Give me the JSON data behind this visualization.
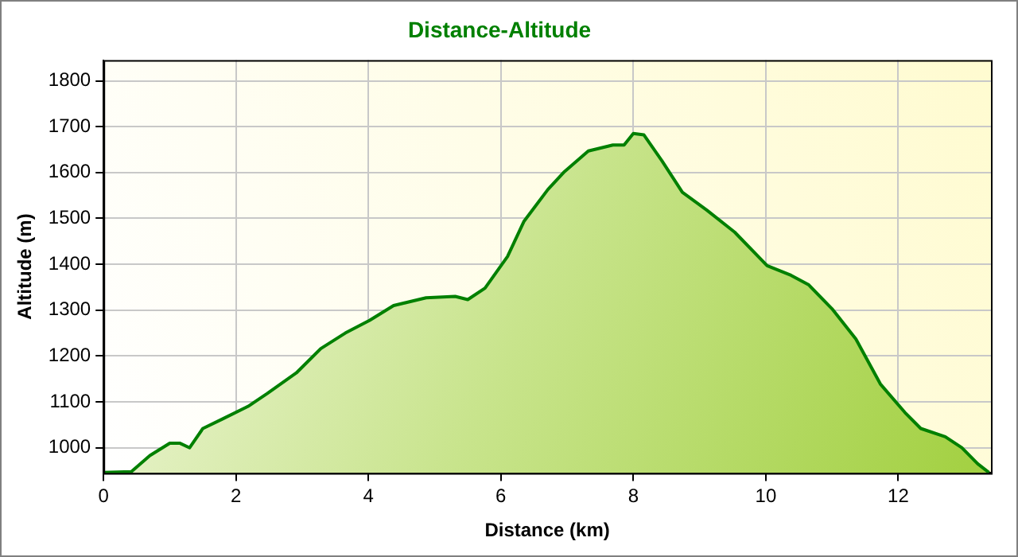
{
  "chart_data": {
    "type": "area",
    "title": "Distance-Altitude",
    "xlabel": "Distance (km)",
    "ylabel": "Altitude (m)",
    "x": [
      0,
      0.42,
      0.7,
      1.0,
      1.15,
      1.3,
      1.5,
      1.8,
      2.18,
      2.47,
      2.91,
      3.28,
      3.65,
      4.02,
      4.38,
      4.87,
      5.31,
      5.5,
      5.76,
      6.1,
      6.35,
      6.71,
      6.96,
      7.32,
      7.69,
      7.86,
      8.0,
      8.16,
      8.43,
      8.74,
      9.11,
      9.53,
      10.02,
      10.38,
      10.65,
      11.0,
      11.36,
      11.73,
      12.1,
      12.34,
      12.71,
      12.96,
      13.2,
      13.37
    ],
    "series": [
      {
        "color": "#008000",
        "values": [
          946,
          948,
          983,
          1010,
          1010,
          1000,
          1042,
          1063,
          1090,
          1118,
          1163,
          1216,
          1250,
          1278,
          1310,
          1327,
          1330,
          1323,
          1348,
          1417,
          1494,
          1563,
          1602,
          1647,
          1660,
          1660,
          1685,
          1682,
          1626,
          1557,
          1518,
          1470,
          1397,
          1376,
          1355,
          1303,
          1237,
          1139,
          1077,
          1042,
          1024,
          1000,
          965,
          946
        ]
      }
    ],
    "xlim": [
      0,
      13.4
    ],
    "ylim": [
      945,
      1845
    ],
    "xticks": [
      0,
      2,
      4,
      6,
      8,
      10,
      12
    ],
    "yticks": [
      1000,
      1100,
      1200,
      1300,
      1400,
      1500,
      1600,
      1700,
      1800
    ],
    "grid": true,
    "legend": false,
    "marker": "none",
    "line_style": "solid"
  }
}
